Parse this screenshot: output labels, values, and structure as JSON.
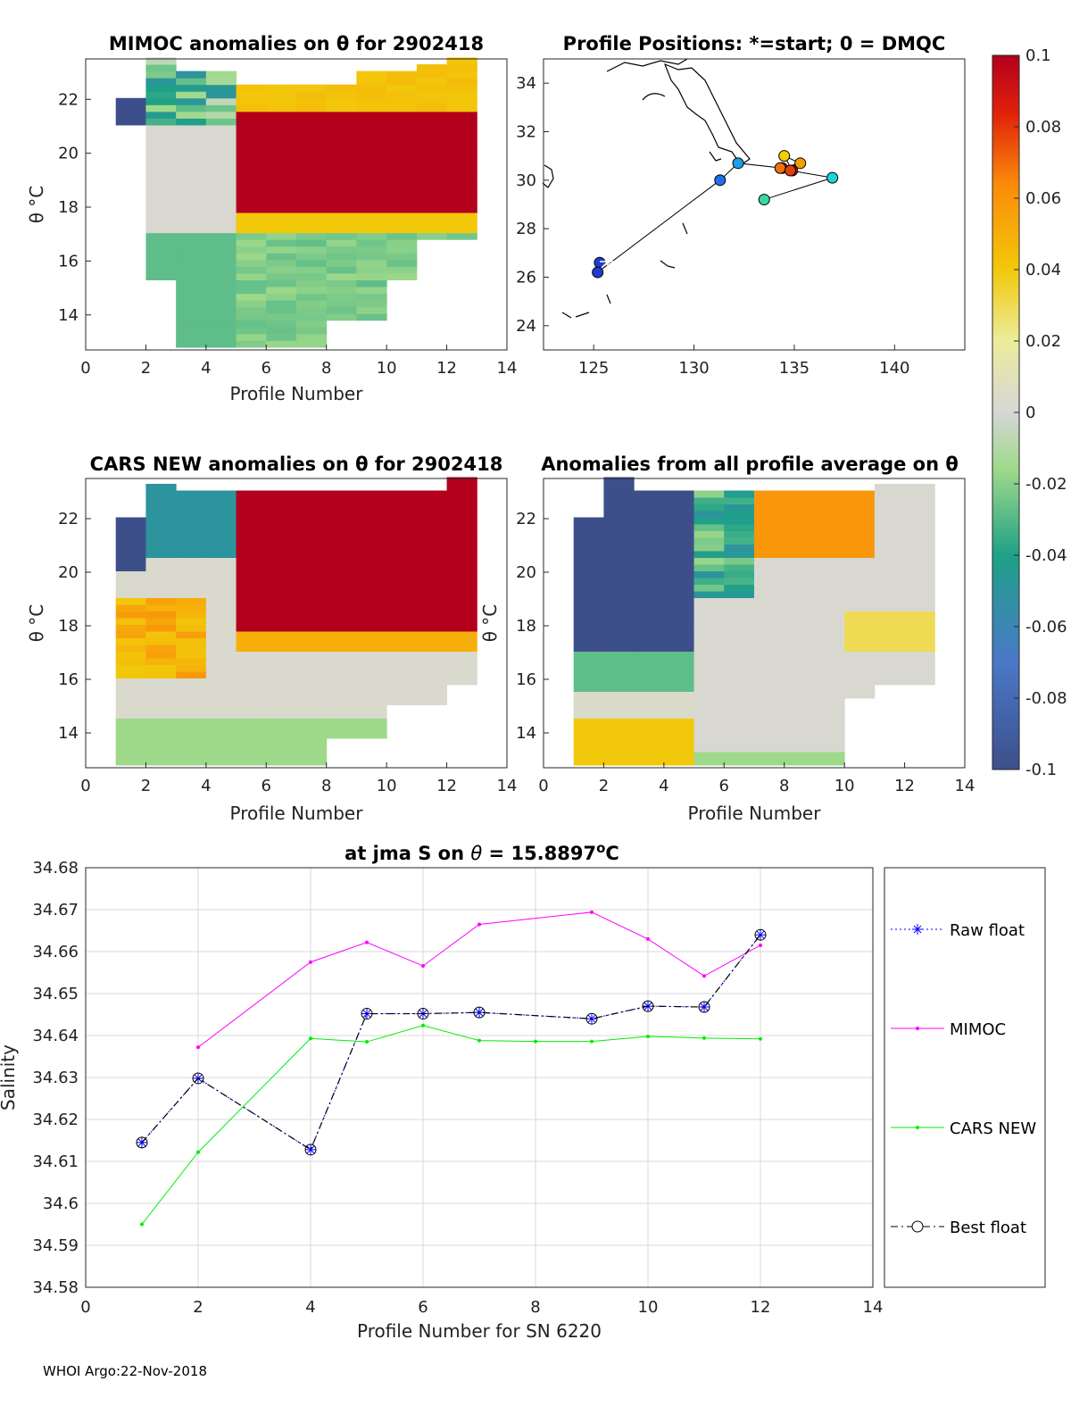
{
  "colors": {
    "mimoc": "#ff00ff",
    "cars": "#00ee00",
    "raw": "#0000ff",
    "best": "#000000"
  },
  "panels": {
    "mimoc": {
      "title": "MIMOC anomalies on θ  for 2902418",
      "xlabel": "Profile Number",
      "ylabel": "θ °C"
    },
    "positions": {
      "title": "Profile Positions: *=start; 0 = DMQC"
    },
    "cars": {
      "title": "CARS NEW anomalies on θ for 2902418",
      "xlabel": "Profile Number",
      "ylabel": "θ °C"
    },
    "allavg": {
      "title": "Anomalies from all profile average on θ",
      "xlabel": "Profile Number",
      "ylabel": "θ °C"
    }
  },
  "colorbar": {
    "ticks": [
      "0.1",
      "0.08",
      "0.06",
      "0.04",
      "0.02",
      "0",
      "-0.02",
      "-0.04",
      "-0.06",
      "-0.08",
      "-0.1"
    ]
  },
  "footer": "WHOI Argo:22-Nov-2018",
  "chart_data": [
    {
      "type": "heatmap",
      "name": "MIMOC anomalies",
      "xlim": [
        0,
        14
      ],
      "ylim": [
        12.7,
        23.5
      ],
      "xticks": [
        0,
        2,
        4,
        6,
        8,
        10,
        12,
        14
      ],
      "yticks": [
        14,
        16,
        18,
        20,
        22
      ],
      "clim": [
        -0.1,
        0.1
      ]
    },
    {
      "type": "scatter",
      "name": "Profile positions",
      "xlim": [
        122.5,
        143.5
      ],
      "ylim": [
        23,
        35
      ],
      "xticks": [
        125,
        130,
        135,
        140
      ],
      "yticks": [
        24,
        26,
        28,
        30,
        32,
        34
      ],
      "lon": [
        125.3,
        125.2,
        131.3,
        132.2,
        134.4,
        134.9,
        134.5,
        135.3,
        134.3,
        134.8,
        136.9,
        133.5
      ],
      "lat": [
        26.6,
        26.2,
        30.0,
        30.7,
        30.5,
        30.4,
        31.0,
        30.7,
        30.5,
        30.4,
        30.1,
        29.2
      ]
    },
    {
      "type": "heatmap",
      "name": "CARS NEW anomalies",
      "xlim": [
        0,
        14
      ],
      "ylim": [
        12.7,
        23.5
      ],
      "xticks": [
        0,
        2,
        4,
        6,
        8,
        10,
        12,
        14
      ],
      "yticks": [
        14,
        16,
        18,
        20,
        22
      ],
      "clim": [
        -0.1,
        0.1
      ]
    },
    {
      "type": "heatmap",
      "name": "Anomalies from all profile average",
      "xlim": [
        0,
        14
      ],
      "ylim": [
        12.7,
        23.5
      ],
      "xticks": [
        0,
        2,
        4,
        6,
        8,
        10,
        12,
        14
      ],
      "yticks": [
        14,
        16,
        18,
        20,
        22
      ],
      "clim": [
        -0.1,
        0.1
      ]
    },
    {
      "type": "line",
      "title": "at jma S on θ = 15.8897°C",
      "xlabel": "Profile Number for SN 6220",
      "ylabel": "Salinity",
      "xlim": [
        0,
        14
      ],
      "ylim": [
        34.58,
        34.68
      ],
      "xticks": [
        0,
        2,
        4,
        6,
        8,
        10,
        12,
        14
      ],
      "yticks": [
        "34.58",
        "34.59",
        "34.6",
        "34.61",
        "34.62",
        "34.63",
        "34.64",
        "34.65",
        "34.66",
        "34.67",
        "34.68"
      ],
      "series": [
        {
          "name": "Raw float",
          "x": [
            1,
            2,
            4,
            5,
            6,
            7,
            9,
            10,
            11,
            12
          ],
          "y": [
            34.6145,
            34.6298,
            34.6128,
            34.6452,
            34.6452,
            34.6455,
            34.644,
            34.647,
            34.6468,
            34.664
          ]
        },
        {
          "name": "MIMOC",
          "x": [
            2,
            4,
            5,
            6,
            7,
            9,
            10,
            11,
            12
          ],
          "y": [
            34.6372,
            34.6575,
            34.6622,
            34.6566,
            34.6665,
            34.6694,
            34.663,
            34.6542,
            34.6615
          ]
        },
        {
          "name": "CARS NEW",
          "x": [
            1,
            2,
            4,
            5,
            6,
            7,
            8,
            9,
            10,
            11,
            12
          ],
          "y": [
            34.595,
            34.6122,
            34.6393,
            34.6385,
            34.6424,
            34.6388,
            34.6386,
            34.6386,
            34.6398,
            34.6394,
            34.6392
          ]
        },
        {
          "name": "Best float",
          "x": [
            1,
            2,
            4,
            5,
            6,
            7,
            9,
            10,
            11,
            12
          ],
          "y": [
            34.6145,
            34.6298,
            34.6128,
            34.6452,
            34.6452,
            34.6455,
            34.644,
            34.647,
            34.6468,
            34.664
          ]
        }
      ]
    }
  ]
}
